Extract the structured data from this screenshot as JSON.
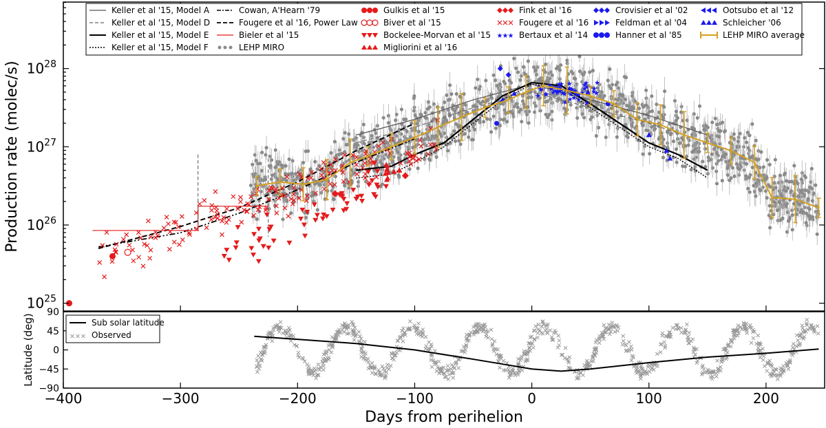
{
  "chart_data": [
    {
      "type": "scatter",
      "panel": "top",
      "title": "",
      "xlabel": "Days from perihelion",
      "ylabel": "Production rate (molec/s)",
      "xlim": [
        -400,
        250
      ],
      "ylim_log10": [
        24.9,
        28.85
      ],
      "yscale": "log",
      "ytick_base": "10",
      "yticks": [
        {
          "exp": "25",
          "log": 25
        },
        {
          "exp": "26",
          "log": 26
        },
        {
          "exp": "27",
          "log": 27
        },
        {
          "exp": "28",
          "log": 28
        }
      ],
      "xticks": [
        {
          "label": "−400",
          "value": -400
        },
        {
          "label": "−300",
          "value": -300
        },
        {
          "label": "−200",
          "value": -200
        },
        {
          "label": "−100",
          "value": -100
        },
        {
          "label": "0",
          "value": 0
        },
        {
          "label": "100",
          "value": 100
        },
        {
          "label": "200",
          "value": 200
        }
      ],
      "legend_position": "top",
      "legend": [
        {
          "label": "Keller et al '15, Model A",
          "style": "line-grey"
        },
        {
          "label": "Keller et al '15, Model D",
          "style": "line-grey-dashed"
        },
        {
          "label": "Keller et al '15, Model E",
          "style": "line-black"
        },
        {
          "label": "Keller et al '15, Model F",
          "style": "line-dotted"
        },
        {
          "label": "Cowan, A'Hearn '79",
          "style": "line-dashdot"
        },
        {
          "label": "Fougere et al '16, Power Law",
          "style": "line-dashed"
        },
        {
          "label": "Bieler et al '15",
          "style": "line-red"
        },
        {
          "label": "LEHP MIRO",
          "style": "grey-dots"
        },
        {
          "label": "Gulkis et al '15",
          "style": "red-circle"
        },
        {
          "label": "Biver et al '15",
          "style": "red-open-circle"
        },
        {
          "label": "Bockelee-Morvan et al '15",
          "style": "red-tri-down"
        },
        {
          "label": "Migliorini et al '16",
          "style": "red-tri-up"
        },
        {
          "label": "Fink et al '16",
          "style": "red-diamond"
        },
        {
          "label": "Fougere et al '16",
          "style": "red-x"
        },
        {
          "label": "Bertaux et al '14",
          "style": "blue-star"
        },
        {
          "label": "Crovisier et al '02",
          "style": "blue-diamond"
        },
        {
          "label": "Feldman et al '04",
          "style": "blue-tri-right"
        },
        {
          "label": "Hanner et al '85",
          "style": "blue-circle"
        },
        {
          "label": "Ootsubo et al '12",
          "style": "blue-tri-left"
        },
        {
          "label": "Schleicher '06",
          "style": "blue-tri-up"
        },
        {
          "label": "LEHP MIRO average",
          "style": "gold-errorbar"
        }
      ],
      "series": [
        {
          "name": "Keller et al '15, Model A",
          "x": [
            -150,
            -100,
            -50,
            0,
            50,
            100,
            150
          ],
          "log_y": [
            27.15,
            27.35,
            27.6,
            27.8,
            27.6,
            27.4,
            27.15
          ]
        },
        {
          "name": "Keller et al '15, Model D",
          "x": [
            -150,
            -100,
            -50,
            0,
            50,
            100,
            150
          ],
          "log_y": [
            27.05,
            27.25,
            27.5,
            27.7,
            27.5,
            27.3,
            27.05
          ]
        },
        {
          "name": "Keller et al '15, Model E",
          "x": [
            -150,
            -120,
            -100,
            -75,
            -50,
            -25,
            0,
            25,
            50,
            75,
            100,
            125,
            150
          ],
          "log_y": [
            26.7,
            26.75,
            26.9,
            27.05,
            27.35,
            27.65,
            27.82,
            27.78,
            27.55,
            27.3,
            27.05,
            26.9,
            26.7
          ]
        },
        {
          "name": "Keller et al '15, Model F",
          "x": [
            -150,
            -120,
            -100,
            -75,
            -50,
            -25,
            0,
            25,
            50,
            75,
            100,
            125,
            150
          ],
          "log_y": [
            26.6,
            26.65,
            26.8,
            27.0,
            27.3,
            27.6,
            27.8,
            27.75,
            27.5,
            27.25,
            27.0,
            26.85,
            26.6
          ]
        },
        {
          "name": "Cowan, A'Hearn '79",
          "x": [
            -370,
            -300,
            -250,
            -200,
            -150,
            -100
          ],
          "log_y": [
            25.72,
            25.9,
            26.15,
            26.45,
            26.8,
            27.1
          ]
        },
        {
          "name": "Fougere et al '16, Power Law",
          "x": [
            -370,
            -300,
            -250,
            -200,
            -150,
            -100
          ],
          "log_y": [
            25.7,
            25.98,
            26.22,
            26.55,
            26.95,
            27.3
          ]
        },
        {
          "name": "Bieler et al '15",
          "x": [
            -375,
            -285,
            -285,
            -225
          ],
          "log_y": [
            25.93,
            25.93,
            26.24,
            26.24
          ]
        },
        {
          "name": "LEHP MIRO average",
          "x": [
            -235,
            -215,
            -195,
            -175,
            -155,
            -140,
            -120,
            -100,
            -80,
            -60,
            -40,
            -20,
            -5,
            10,
            30,
            50,
            70,
            90,
            110,
            130,
            150,
            170,
            190,
            205,
            225,
            245
          ],
          "log_y": [
            26.5,
            26.55,
            26.52,
            26.58,
            26.8,
            26.88,
            27.0,
            27.12,
            27.25,
            27.38,
            27.5,
            27.6,
            27.7,
            27.78,
            27.72,
            27.65,
            27.55,
            27.35,
            27.28,
            27.15,
            27.05,
            26.95,
            26.8,
            26.35,
            26.33,
            26.22
          ]
        },
        {
          "name": "Gulkis et al '15",
          "x": [
            -395,
            -358
          ],
          "log_y": [
            25.0,
            25.6
          ]
        },
        {
          "name": "Fink et al '16",
          "x": [
            -108,
            -168
          ],
          "log_y": [
            26.63,
            26.4
          ]
        },
        {
          "name": "Hanner et al '85",
          "x": [
            -30,
            65
          ],
          "log_y": [
            27.3,
            27.55
          ]
        },
        {
          "name": "Crovisier et al '02",
          "x": [
            -27,
            -20
          ],
          "log_y": [
            28.0,
            27.92
          ]
        }
      ]
    },
    {
      "type": "scatter",
      "panel": "bottom",
      "xlabel": "Days from perihelion",
      "ylabel": "Latitude (deg)",
      "xlim": [
        -400,
        250
      ],
      "ylim": [
        -90,
        90
      ],
      "yticks": [
        {
          "label": "90",
          "value": 90
        },
        {
          "label": "45",
          "value": 45
        },
        {
          "label": "0",
          "value": 0
        },
        {
          "label": "−45",
          "value": -45
        },
        {
          "label": "−90",
          "value": -90
        }
      ],
      "legend_position": "top-left",
      "legend": [
        {
          "label": "Sub solar latitude",
          "style": "line-black"
        },
        {
          "label": "Observed",
          "style": "grey-x"
        }
      ],
      "series": [
        {
          "name": "Sub solar latitude",
          "x": [
            -237,
            -200,
            -150,
            -100,
            -50,
            0,
            25,
            50,
            100,
            150,
            200,
            245
          ],
          "y": [
            32,
            25,
            15,
            0,
            -22,
            -45,
            -50,
            -45,
            -30,
            -17,
            -8,
            2
          ]
        }
      ]
    }
  ],
  "colors": {
    "grey": "#8a8a8a",
    "red": "#e41a1c",
    "blue": "#1a1aee",
    "gold": "#d4a020",
    "black": "#000000"
  }
}
